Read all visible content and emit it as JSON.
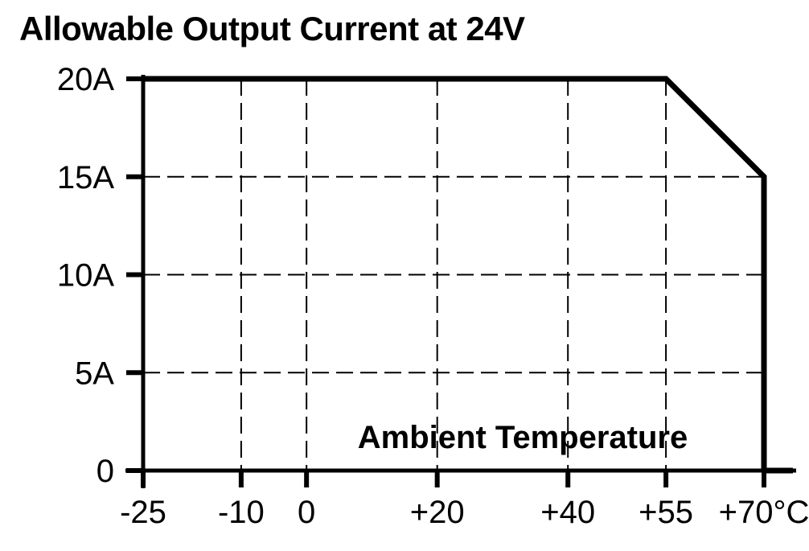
{
  "chart_data": {
    "type": "line",
    "title": "Allowable Output Current at 24V",
    "xlabel": "Ambient Temperature",
    "ylabel": "",
    "x_unit": "°C",
    "y_unit": "A",
    "xlim": [
      -25,
      70
    ],
    "ylim": [
      0,
      20
    ],
    "grid": "dashed",
    "legend": "none",
    "x_ticks": [
      {
        "value": -25,
        "label": "-25",
        "grid": false
      },
      {
        "value": -10,
        "label": "-10",
        "grid": true
      },
      {
        "value": 0,
        "label": "0",
        "grid": true
      },
      {
        "value": 20,
        "label": "+20",
        "grid": true
      },
      {
        "value": 40,
        "label": "+40",
        "grid": true
      },
      {
        "value": 55,
        "label": "+55",
        "grid": true
      },
      {
        "value": 70,
        "label": "+70°C",
        "grid": false
      }
    ],
    "y_ticks": [
      {
        "value": 0,
        "label": "0",
        "grid": false
      },
      {
        "value": 5,
        "label": "5A",
        "grid": true
      },
      {
        "value": 10,
        "label": "10A",
        "grid": true
      },
      {
        "value": 15,
        "label": "15A",
        "grid": true
      },
      {
        "value": 20,
        "label": "20A",
        "grid": false
      }
    ],
    "series": [
      {
        "name": "allowable-output-current",
        "points": [
          [
            -25,
            20
          ],
          [
            55,
            20
          ],
          [
            70,
            15
          ],
          [
            70,
            0
          ]
        ]
      }
    ]
  },
  "colors": {
    "line": "#000000",
    "grid": "#000000",
    "axis": "#000000",
    "text": "#000000",
    "background": "#ffffff"
  }
}
